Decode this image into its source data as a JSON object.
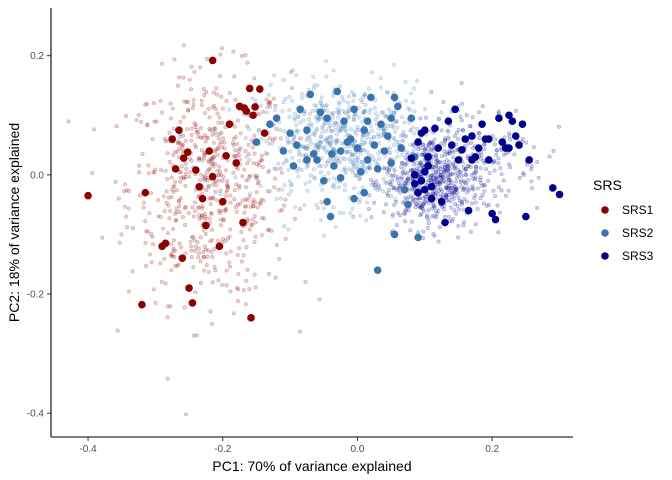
{
  "chart_data": {
    "type": "scatter",
    "xlabel": "PC1: 70% of variance explained",
    "ylabel": "PC2: 18% of variance explained",
    "xlim": [
      -0.455,
      0.32
    ],
    "ylim": [
      -0.44,
      0.28
    ],
    "x_ticks": [
      -0.4,
      -0.2,
      0.0,
      0.2
    ],
    "x_tick_labels": [
      "-0.4",
      "-0.2",
      "0.0",
      "0.2"
    ],
    "y_ticks": [
      0.2,
      0.0,
      -0.2,
      -0.4
    ],
    "y_tick_labels": [
      "0.2",
      "0.0",
      "-0.2",
      "-0.4"
    ],
    "grid": false,
    "legend": {
      "title": "SRS",
      "placement": "right"
    },
    "series": [
      {
        "name": "SRS1",
        "color": "#8b0000",
        "points": [
          [
            -0.4,
            -0.035
          ],
          [
            -0.315,
            -0.03
          ],
          [
            -0.32,
            -0.218
          ],
          [
            -0.29,
            -0.12
          ],
          [
            -0.285,
            -0.115
          ],
          [
            -0.275,
            0.06
          ],
          [
            -0.27,
            0.01
          ],
          [
            -0.265,
            0.075
          ],
          [
            -0.258,
            0.028
          ],
          [
            -0.252,
            0.038
          ],
          [
            -0.25,
            -0.19
          ],
          [
            -0.245,
            -0.215
          ],
          [
            -0.24,
            0.008
          ],
          [
            -0.235,
            -0.02
          ],
          [
            -0.23,
            -0.04
          ],
          [
            -0.225,
            -0.085
          ],
          [
            -0.22,
            0.04
          ],
          [
            -0.215,
            -0.003
          ],
          [
            -0.215,
            0.192
          ],
          [
            -0.2,
            -0.045
          ],
          [
            -0.195,
            0.032
          ],
          [
            -0.19,
            0.085
          ],
          [
            -0.18,
            0.02
          ],
          [
            -0.175,
            0.115
          ],
          [
            -0.17,
            -0.08
          ],
          [
            -0.168,
            0.112
          ],
          [
            -0.165,
            0.107
          ],
          [
            -0.16,
            0.145
          ],
          [
            -0.158,
            -0.24
          ],
          [
            -0.155,
            0.1
          ],
          [
            -0.152,
            0.114
          ],
          [
            -0.145,
            0.144
          ],
          [
            -0.138,
            0.07
          ],
          [
            -0.205,
            -0.12
          ],
          [
            -0.26,
            -0.14
          ]
        ]
      },
      {
        "name": "SRS2",
        "color": "#3a74b0",
        "points": [
          [
            -0.15,
            0.055
          ],
          [
            -0.13,
            0.085
          ],
          [
            -0.12,
            0.095
          ],
          [
            -0.11,
            0.04
          ],
          [
            -0.1,
            0.07
          ],
          [
            -0.095,
            0.015
          ],
          [
            -0.085,
            0.11
          ],
          [
            -0.075,
            0.075
          ],
          [
            -0.07,
            0.135
          ],
          [
            -0.065,
            0.035
          ],
          [
            -0.06,
            0.025
          ],
          [
            -0.055,
            0.105
          ],
          [
            -0.05,
            -0.01
          ],
          [
            -0.045,
            0.095
          ],
          [
            -0.04,
            -0.07
          ],
          [
            -0.038,
            0.035
          ],
          [
            -0.03,
            0.14
          ],
          [
            -0.025,
            -0.005
          ],
          [
            -0.02,
            0.09
          ],
          [
            -0.015,
            0.055
          ],
          [
            -0.01,
            0.06
          ],
          [
            -0.005,
            0.11
          ],
          [
            0.0,
            0.045
          ],
          [
            0.005,
            0.005
          ],
          [
            0.01,
            0.075
          ],
          [
            0.015,
            0.09
          ],
          [
            0.02,
            0.13
          ],
          [
            0.025,
            0.05
          ],
          [
            0.03,
            0.01
          ],
          [
            0.035,
            0.085
          ],
          [
            0.045,
            0.065
          ],
          [
            0.05,
            0.095
          ],
          [
            0.055,
            0.13
          ],
          [
            0.06,
            0.115
          ],
          [
            0.07,
            -0.025
          ],
          [
            0.075,
            -0.05
          ],
          [
            0.08,
            0.095
          ],
          [
            0.085,
            0.03
          ],
          [
            -0.045,
            -0.045
          ],
          [
            0.03,
            -0.16
          ],
          [
            0.055,
            -0.1
          ],
          [
            0.09,
            -0.105
          ],
          [
            -0.035,
            0.015
          ],
          [
            0.01,
            -0.03
          ],
          [
            -0.075,
            0.025
          ],
          [
            0.04,
            0.04
          ],
          [
            -0.005,
            -0.04
          ],
          [
            0.065,
            0.045
          ],
          [
            -0.09,
            0.05
          ],
          [
            0.015,
            0.025
          ],
          [
            -0.025,
            0.04
          ],
          [
            0.05,
            0.02
          ]
        ]
      },
      {
        "name": "SRS3",
        "color": "#00008b",
        "points": [
          [
            0.08,
            0.028
          ],
          [
            0.085,
            -0.015
          ],
          [
            0.09,
            0.055
          ],
          [
            0.095,
            0.07
          ],
          [
            0.1,
            0.075
          ],
          [
            0.105,
            0.03
          ],
          [
            0.11,
            -0.02
          ],
          [
            0.115,
            0.078
          ],
          [
            0.12,
            0.045
          ],
          [
            0.125,
            -0.045
          ],
          [
            0.13,
            -0.08
          ],
          [
            0.135,
            0.09
          ],
          [
            0.14,
            0.05
          ],
          [
            0.145,
            0.11
          ],
          [
            0.15,
            0.025
          ],
          [
            0.155,
            0.042
          ],
          [
            0.16,
            0.06
          ],
          [
            0.165,
            -0.06
          ],
          [
            0.17,
            0.065
          ],
          [
            0.175,
            0.03
          ],
          [
            0.18,
            0.045
          ],
          [
            0.185,
            0.085
          ],
          [
            0.19,
            0.06
          ],
          [
            0.195,
            0.025
          ],
          [
            0.2,
            -0.065
          ],
          [
            0.205,
            -0.075
          ],
          [
            0.21,
            0.095
          ],
          [
            0.215,
            0.055
          ],
          [
            0.22,
            0.045
          ],
          [
            0.225,
            0.1
          ],
          [
            0.23,
            0.09
          ],
          [
            0.235,
            0.065
          ],
          [
            0.24,
            0.05
          ],
          [
            0.245,
            0.085
          ],
          [
            0.25,
            -0.07
          ],
          [
            0.255,
            0.025
          ],
          [
            0.225,
            0.045
          ],
          [
            0.29,
            -0.022
          ],
          [
            0.3,
            -0.033
          ],
          [
            0.195,
            0.06
          ],
          [
            0.17,
            0.025
          ],
          [
            0.1,
            -0.025
          ],
          [
            0.095,
            -0.01
          ],
          [
            0.105,
            0.015
          ],
          [
            0.09,
            -0.03
          ],
          [
            0.11,
            -0.04
          ],
          [
            0.085,
            0.0
          ],
          [
            0.1,
            0.005
          ]
        ]
      }
    ]
  }
}
